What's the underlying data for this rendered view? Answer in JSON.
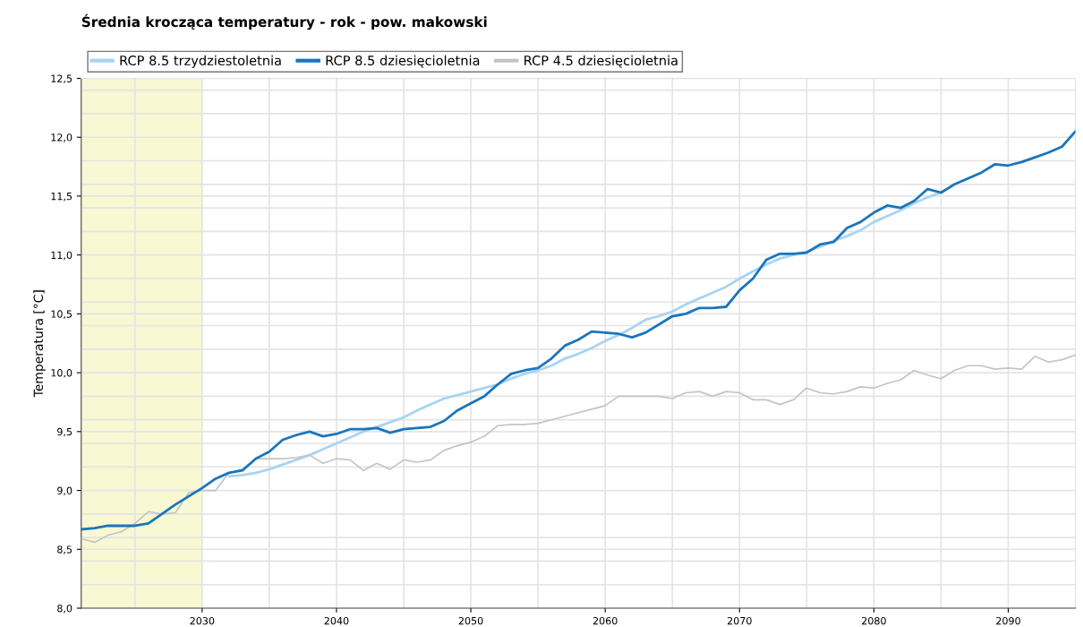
{
  "chart_data": {
    "type": "line",
    "title": "Średnia krocząca temperatury - rok - pow. makowski",
    "ylabel": "Temperatura [°C]",
    "xlim": [
      2021,
      2095
    ],
    "ylim": [
      8.0,
      12.5
    ],
    "xticks": [
      {
        "value": 2025,
        "label": null
      },
      2030,
      {
        "value": 2035,
        "label": null
      },
      2040,
      {
        "value": 2045,
        "label": null
      },
      2050,
      {
        "value": 2055,
        "label": null
      },
      2060,
      {
        "value": 2065,
        "label": null
      },
      2070,
      {
        "value": 2075,
        "label": null
      },
      2080,
      {
        "value": 2085,
        "label": null
      },
      2090
    ],
    "yticks": [
      {
        "value": 8.0,
        "label": "8,0"
      },
      {
        "value": 8.2,
        "label": null
      },
      {
        "value": 8.4,
        "label": null
      },
      {
        "value": 8.5,
        "label": "8,5"
      },
      {
        "value": 8.6,
        "label": null
      },
      {
        "value": 8.8,
        "label": null
      },
      {
        "value": 9.0,
        "label": "9,0"
      },
      {
        "value": 9.2,
        "label": null
      },
      {
        "value": 9.4,
        "label": null
      },
      {
        "value": 9.5,
        "label": "9,5"
      },
      {
        "value": 9.6,
        "label": null
      },
      {
        "value": 9.8,
        "label": null
      },
      {
        "value": 10.0,
        "label": "10,0"
      },
      {
        "value": 10.2,
        "label": null
      },
      {
        "value": 10.4,
        "label": null
      },
      {
        "value": 10.5,
        "label": "10,5"
      },
      {
        "value": 10.6,
        "label": null
      },
      {
        "value": 10.8,
        "label": null
      },
      {
        "value": 11.0,
        "label": "11,0"
      },
      {
        "value": 11.2,
        "label": null
      },
      {
        "value": 11.4,
        "label": null
      },
      {
        "value": 11.5,
        "label": "11,5"
      },
      {
        "value": 11.6,
        "label": null
      },
      {
        "value": 11.8,
        "label": null
      },
      {
        "value": 12.0,
        "label": "12,0"
      },
      {
        "value": 12.2,
        "label": null
      },
      {
        "value": 12.4,
        "label": null
      },
      {
        "value": 12.5,
        "label": "12,5"
      }
    ],
    "grid": true,
    "legend": "top left",
    "marker": "none",
    "line_style": "solid",
    "bands": [
      {
        "axis": "x",
        "from": 2021,
        "to": 2030,
        "label": null,
        "color": "#f8f8d2"
      }
    ],
    "series": [
      {
        "name": "RCP 8.5 trzydziestoletnia",
        "color": "#a8d4f2",
        "x": [
          2032,
          2033,
          2034,
          2035,
          2036,
          2037,
          2038,
          2039,
          2040,
          2041,
          2042,
          2043,
          2044,
          2045,
          2046,
          2047,
          2048,
          2049,
          2050,
          2051,
          2052,
          2053,
          2054,
          2055,
          2056,
          2057,
          2058,
          2059,
          2060,
          2061,
          2062,
          2063,
          2064,
          2065,
          2066,
          2067,
          2068,
          2069,
          2070,
          2071,
          2072,
          2073,
          2074,
          2075,
          2076,
          2077,
          2078,
          2079,
          2080,
          2081,
          2082,
          2083,
          2084,
          2085
        ],
        "values": [
          9.12,
          9.13,
          9.15,
          9.18,
          9.22,
          9.26,
          9.3,
          9.35,
          9.4,
          9.45,
          9.5,
          9.54,
          9.58,
          9.62,
          9.68,
          9.73,
          9.78,
          9.81,
          9.84,
          9.87,
          9.9,
          9.95,
          9.99,
          10.02,
          10.06,
          10.12,
          10.16,
          10.21,
          10.27,
          10.32,
          10.38,
          10.45,
          10.48,
          10.52,
          10.58,
          10.63,
          10.68,
          10.73,
          10.8,
          10.86,
          10.92,
          10.97,
          11.0,
          11.03,
          11.07,
          11.12,
          11.16,
          11.21,
          11.28,
          11.33,
          11.38,
          11.44,
          11.49,
          11.53
        ]
      },
      {
        "name": "RCP 8.5 dziesięcioletnia",
        "color": "#1a75bc",
        "x": [
          2021,
          2022,
          2023,
          2024,
          2025,
          2026,
          2027,
          2028,
          2029,
          2030,
          2031,
          2032,
          2033,
          2034,
          2035,
          2036,
          2037,
          2038,
          2039,
          2040,
          2041,
          2042,
          2043,
          2044,
          2045,
          2046,
          2047,
          2048,
          2049,
          2050,
          2051,
          2052,
          2053,
          2054,
          2055,
          2056,
          2057,
          2058,
          2059,
          2060,
          2061,
          2062,
          2063,
          2064,
          2065,
          2066,
          2067,
          2068,
          2069,
          2070,
          2071,
          2072,
          2073,
          2074,
          2075,
          2076,
          2077,
          2078,
          2079,
          2080,
          2081,
          2082,
          2083,
          2084,
          2085,
          2086,
          2087,
          2088,
          2089,
          2090,
          2091,
          2092,
          2093,
          2094,
          2095
        ],
        "values": [
          8.67,
          8.68,
          8.7,
          8.7,
          8.7,
          8.72,
          8.8,
          8.88,
          8.95,
          9.02,
          9.1,
          9.15,
          9.17,
          9.27,
          9.33,
          9.43,
          9.47,
          9.5,
          9.46,
          9.48,
          9.52,
          9.52,
          9.53,
          9.49,
          9.52,
          9.53,
          9.54,
          9.59,
          9.68,
          9.74,
          9.8,
          9.9,
          9.99,
          10.02,
          10.04,
          10.12,
          10.23,
          10.28,
          10.35,
          10.34,
          10.33,
          10.3,
          10.34,
          10.41,
          10.48,
          10.5,
          10.55,
          10.55,
          10.56,
          10.7,
          10.8,
          10.96,
          11.01,
          11.01,
          11.02,
          11.09,
          11.11,
          11.23,
          11.28,
          11.36,
          11.42,
          11.4,
          11.46,
          11.56,
          11.53,
          11.6,
          11.65,
          11.7,
          11.77,
          11.76,
          11.79,
          11.83,
          11.87,
          11.92,
          12.05
        ]
      },
      {
        "name": "RCP 4.5 dziesięcioletnia",
        "color": "#c4c4c4",
        "x": [
          2021,
          2022,
          2023,
          2024,
          2025,
          2026,
          2027,
          2028,
          2029,
          2030,
          2031,
          2032,
          2033,
          2034,
          2035,
          2036,
          2037,
          2038,
          2039,
          2040,
          2041,
          2042,
          2043,
          2044,
          2045,
          2046,
          2047,
          2048,
          2049,
          2050,
          2051,
          2052,
          2053,
          2054,
          2055,
          2056,
          2057,
          2058,
          2059,
          2060,
          2061,
          2062,
          2063,
          2064,
          2065,
          2066,
          2067,
          2068,
          2069,
          2070,
          2071,
          2072,
          2073,
          2074,
          2075,
          2076,
          2077,
          2078,
          2079,
          2080,
          2081,
          2082,
          2083,
          2084,
          2085,
          2086,
          2087,
          2088,
          2089,
          2090,
          2091,
          2092,
          2093,
          2094,
          2095
        ],
        "values": [
          8.59,
          8.56,
          8.62,
          8.65,
          8.72,
          8.82,
          8.8,
          8.81,
          8.98,
          9.0,
          9.0,
          9.15,
          9.18,
          9.27,
          9.27,
          9.27,
          9.28,
          9.3,
          9.23,
          9.27,
          9.26,
          9.17,
          9.23,
          9.18,
          9.26,
          9.24,
          9.26,
          9.34,
          9.38,
          9.41,
          9.46,
          9.55,
          9.56,
          9.56,
          9.57,
          9.6,
          9.63,
          9.66,
          9.69,
          9.72,
          9.8,
          9.8,
          9.8,
          9.8,
          9.78,
          9.83,
          9.84,
          9.8,
          9.84,
          9.83,
          9.77,
          9.77,
          9.73,
          9.77,
          9.87,
          9.83,
          9.82,
          9.84,
          9.88,
          9.87,
          9.91,
          9.94,
          10.02,
          9.98,
          9.95,
          10.02,
          10.06,
          10.06,
          10.03,
          10.04,
          10.03,
          10.14,
          10.09,
          10.11,
          10.15
        ]
      }
    ]
  }
}
